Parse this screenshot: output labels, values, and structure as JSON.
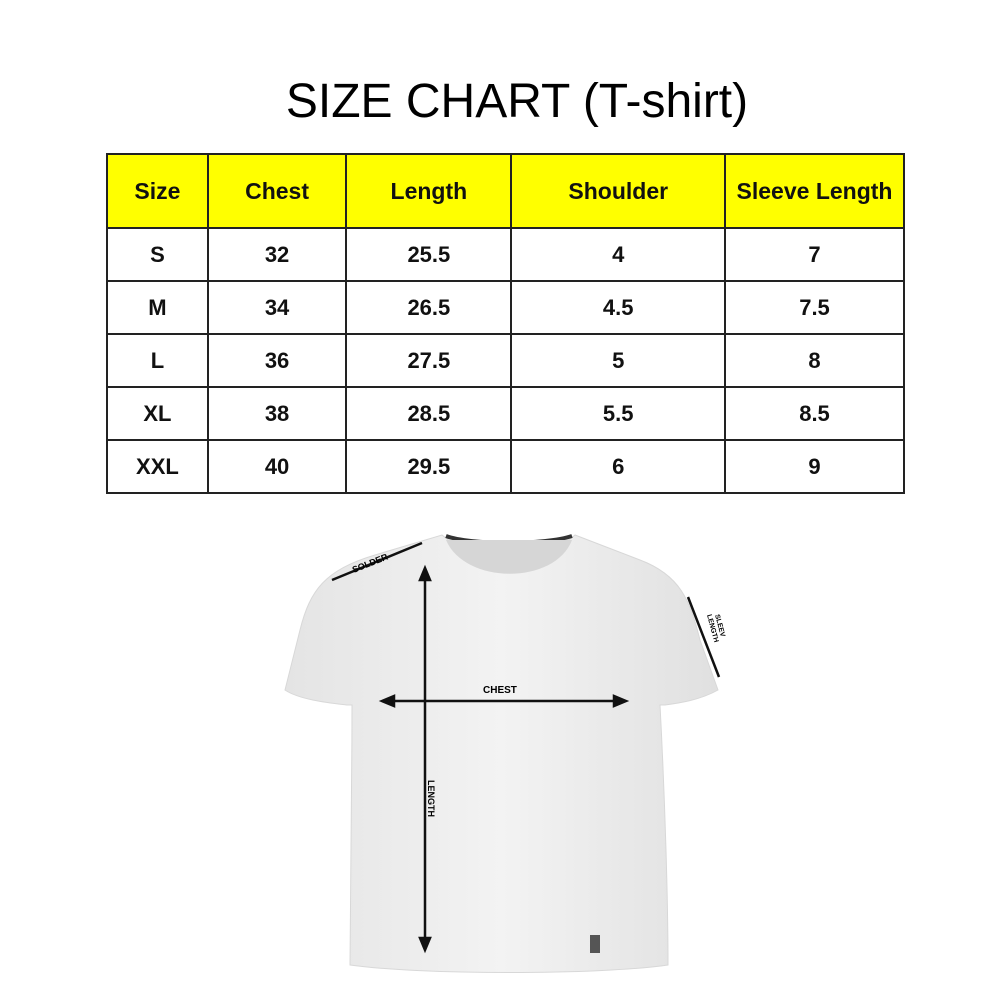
{
  "title": "SIZE CHART (T-shirt)",
  "table": {
    "headers": [
      "Size",
      "Chest",
      "Length",
      "Shoulder",
      "Sleeve Length"
    ],
    "rows": [
      [
        "S",
        "32",
        "25.5",
        "4",
        "7"
      ],
      [
        "M",
        "34",
        "26.5",
        "4.5",
        "7.5"
      ],
      [
        "L",
        "36",
        "27.5",
        "5",
        "8"
      ],
      [
        "XL",
        "38",
        "28.5",
        "5.5",
        "8.5"
      ],
      [
        "XXL",
        "40",
        "29.5",
        "6",
        "9"
      ]
    ],
    "header_color": "#ffff00"
  },
  "diagram": {
    "shoulder": "SOLDER",
    "chest": "CHEST",
    "length": "LENGTH",
    "sleeve_1": "SLEEV",
    "sleeve_2": "LENGTH"
  }
}
